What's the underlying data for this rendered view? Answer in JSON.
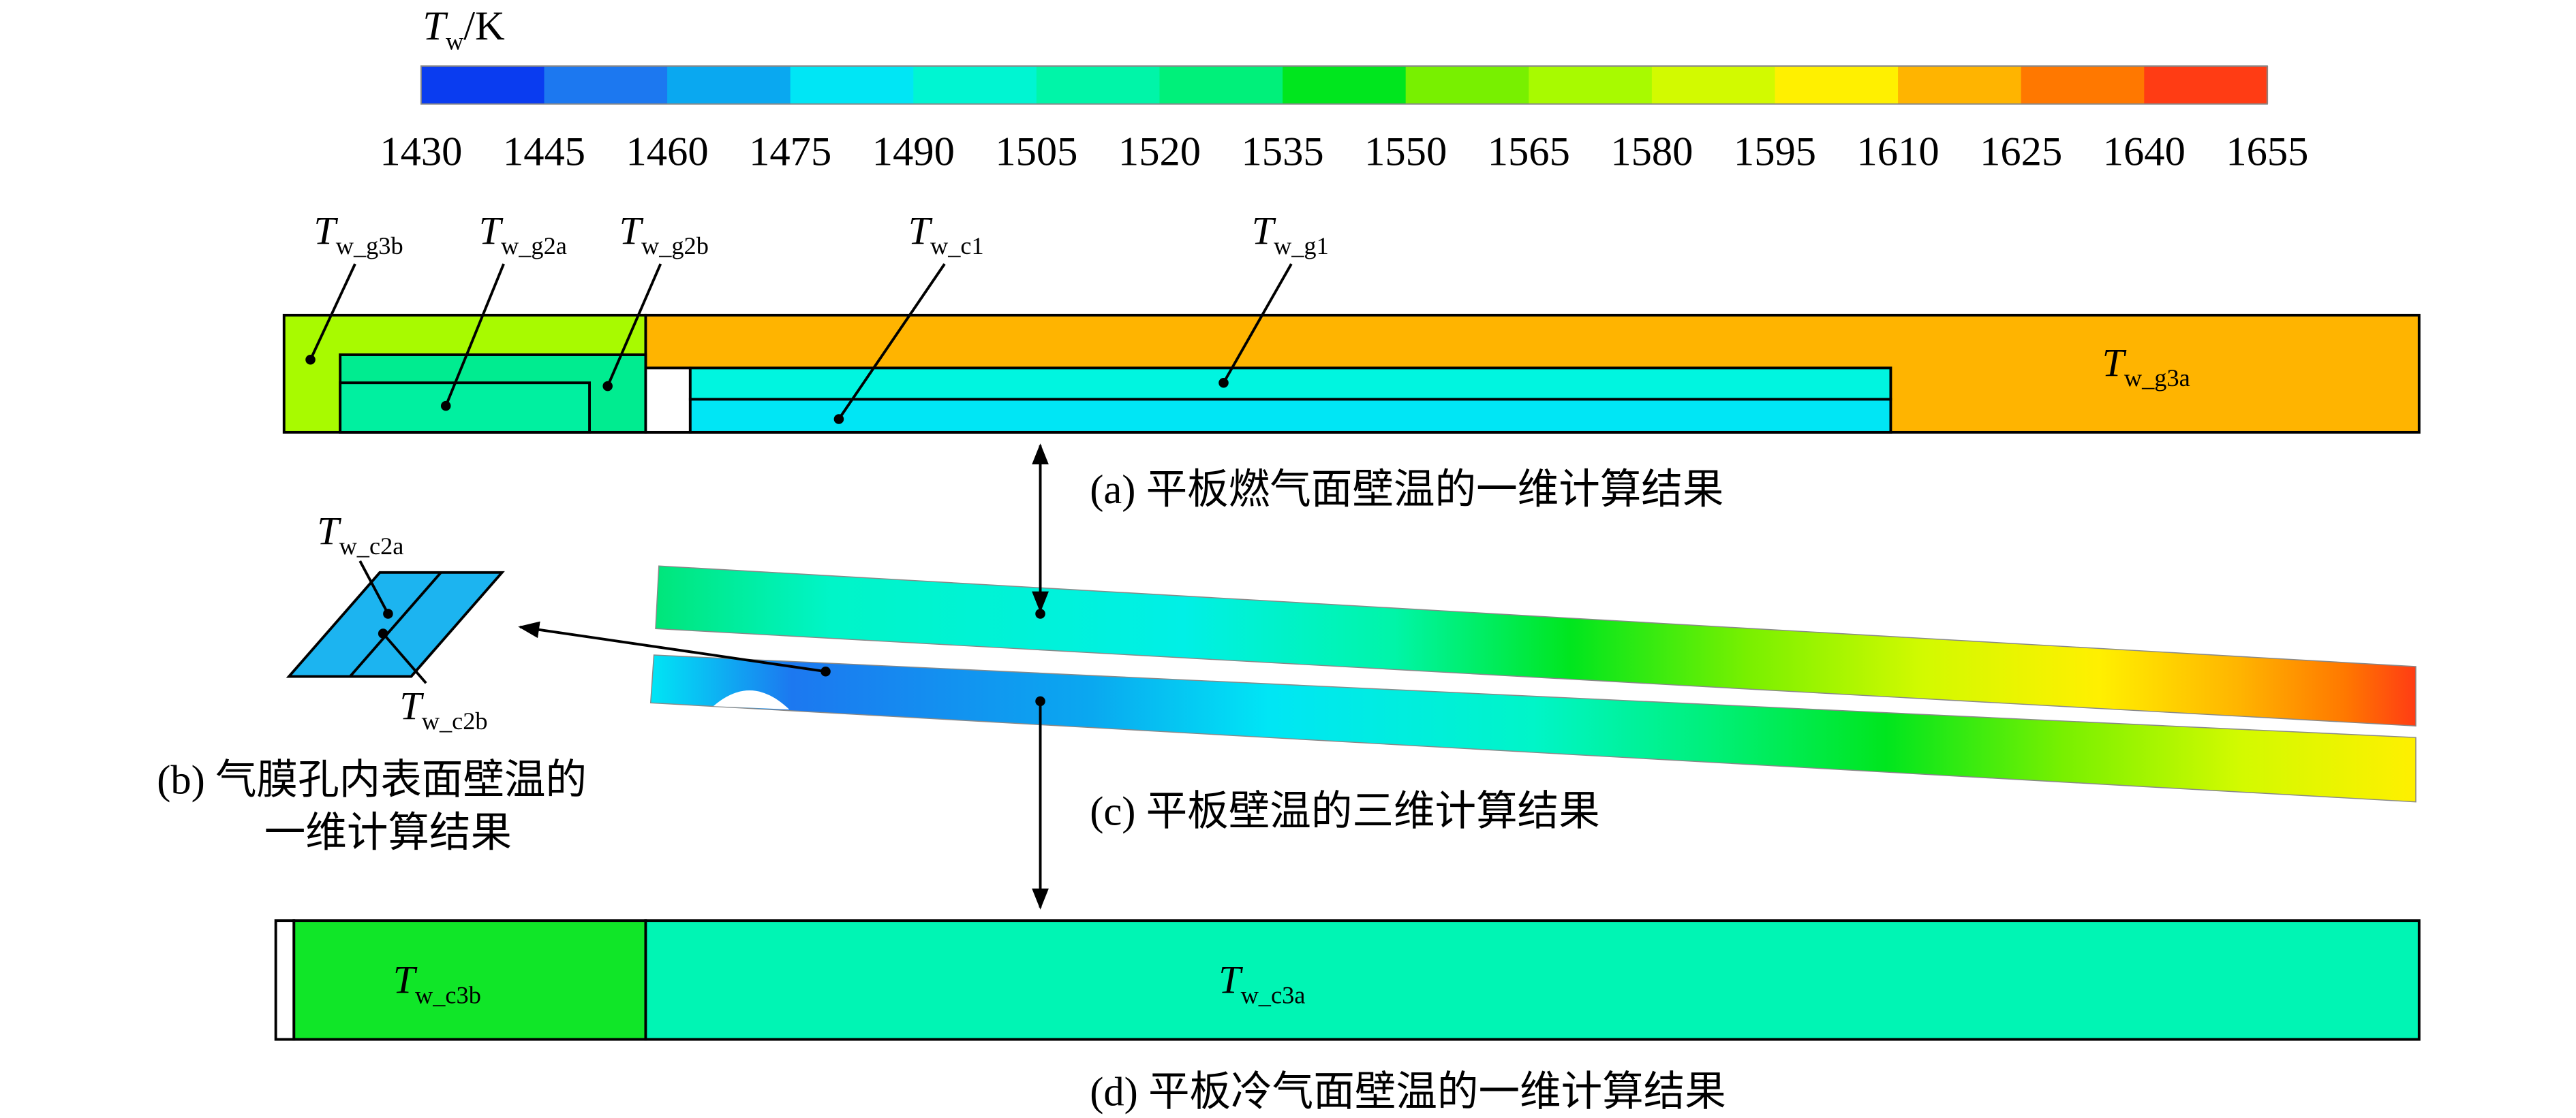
{
  "colorbar": {
    "title": {
      "symbol": "T",
      "subscript": "w",
      "unit": "/K"
    },
    "ticks": [
      1430,
      1445,
      1460,
      1475,
      1490,
      1505,
      1520,
      1535,
      1550,
      1565,
      1580,
      1595,
      1610,
      1625,
      1640,
      1655
    ],
    "colors": [
      "#0a3cf0",
      "#1c78f0",
      "#0aa8f0",
      "#00e6f5",
      "#00f5d2",
      "#00f5a8",
      "#00f07a",
      "#00e61e",
      "#78f000",
      "#a8fa00",
      "#d2fa00",
      "#fff000",
      "#ffb400",
      "#ff7800",
      "#ff3c14"
    ]
  },
  "labels": [
    {
      "symbol": "T",
      "subscript": "w_g3b"
    },
    {
      "symbol": "T",
      "subscript": "w_g2a"
    },
    {
      "symbol": "T",
      "subscript": "w_g2b"
    },
    {
      "symbol": "T",
      "subscript": "w_c1"
    },
    {
      "symbol": "T",
      "subscript": "w_g1"
    },
    {
      "symbol": "T",
      "subscript": "w_g3a"
    },
    {
      "symbol": "T",
      "subscript": "w_c2a"
    },
    {
      "symbol": "T",
      "subscript": "w_c2b"
    },
    {
      "symbol": "T",
      "subscript": "w_c3b"
    },
    {
      "symbol": "T",
      "subscript": "w_c3a"
    }
  ],
  "captions": {
    "a": "(a) 平板燃气面壁温的一维计算结果",
    "b": [
      "(b) 气膜孔内表面壁温的",
      "一维计算结果"
    ],
    "c": "(c) 平板壁温的三维计算结果",
    "d": "(d) 平板冷气面壁温的一维计算结果"
  }
}
